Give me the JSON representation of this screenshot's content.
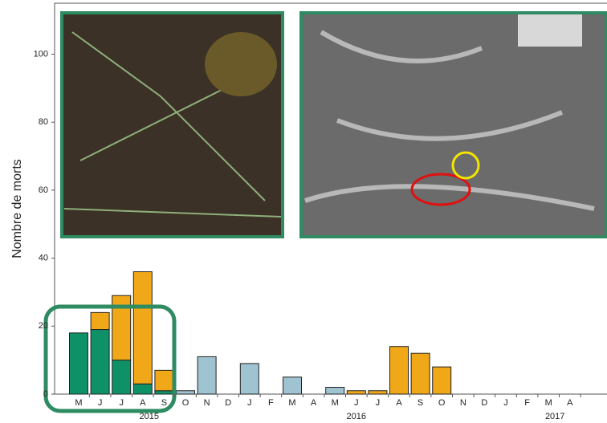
{
  "chart_data": {
    "type": "bar",
    "y_label": "Nombre de morts",
    "categories": [
      "M",
      "J",
      "J",
      "A",
      "S",
      "O",
      "N",
      "D",
      "J",
      "F",
      "M",
      "A",
      "M",
      "J",
      "J",
      "A",
      "S",
      "O",
      "N",
      "D",
      "J",
      "F",
      "M",
      "A"
    ],
    "year_labels": [
      "2015",
      "2016",
      "2017"
    ],
    "series": [
      {
        "color": "#0f9168",
        "values": [
          18,
          19,
          10,
          3,
          1,
          null,
          null,
          null,
          null,
          null,
          null,
          null,
          null,
          null,
          null,
          null,
          null,
          null,
          null,
          null,
          null,
          null,
          null,
          null
        ]
      },
      {
        "color": "#f0a818",
        "values": [
          null,
          5,
          19,
          33,
          6,
          null,
          null,
          null,
          null,
          null,
          null,
          null,
          null,
          1,
          1,
          14,
          12,
          8,
          null,
          null,
          null,
          null,
          null,
          null
        ]
      },
      {
        "color": "#9fc3d1",
        "values": [
          null,
          null,
          null,
          null,
          null,
          1,
          11,
          null,
          9,
          null,
          5,
          null,
          2,
          null,
          null,
          null,
          null,
          null,
          null,
          null,
          null,
          null,
          null,
          null
        ]
      }
    ],
    "ylim": [
      0,
      115
    ],
    "yticks": [
      0,
      20,
      40,
      60,
      80,
      100
    ]
  }
}
